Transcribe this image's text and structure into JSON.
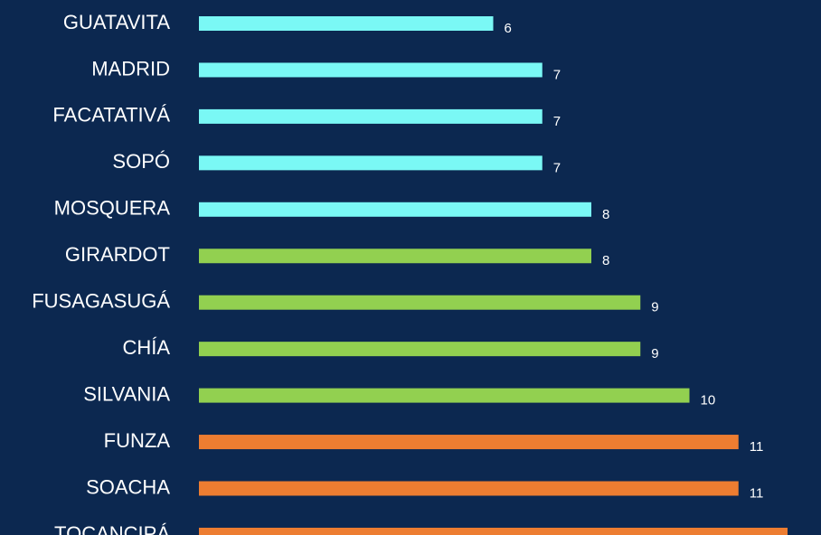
{
  "chart_data": {
    "type": "barh",
    "categories": [
      "GUATAVITA",
      "MADRID",
      "FACATATIVÁ",
      "SOPÓ",
      "MOSQUERA",
      "GIRARDOT",
      "FUSAGASUGÁ",
      "CHÍA",
      "SILVANIA",
      "FUNZA",
      "SOACHA",
      "TOCANCIPÁ"
    ],
    "values": [
      6,
      7,
      7,
      7,
      8,
      8,
      9,
      9,
      10,
      11,
      11,
      12
    ],
    "colors": [
      "#7af8f5",
      "#7af8f5",
      "#7af8f5",
      "#7af8f5",
      "#7af8f5",
      "#92d050",
      "#92d050",
      "#92d050",
      "#92d050",
      "#ed7d31",
      "#ed7d31",
      "#ed7d31"
    ]
  }
}
